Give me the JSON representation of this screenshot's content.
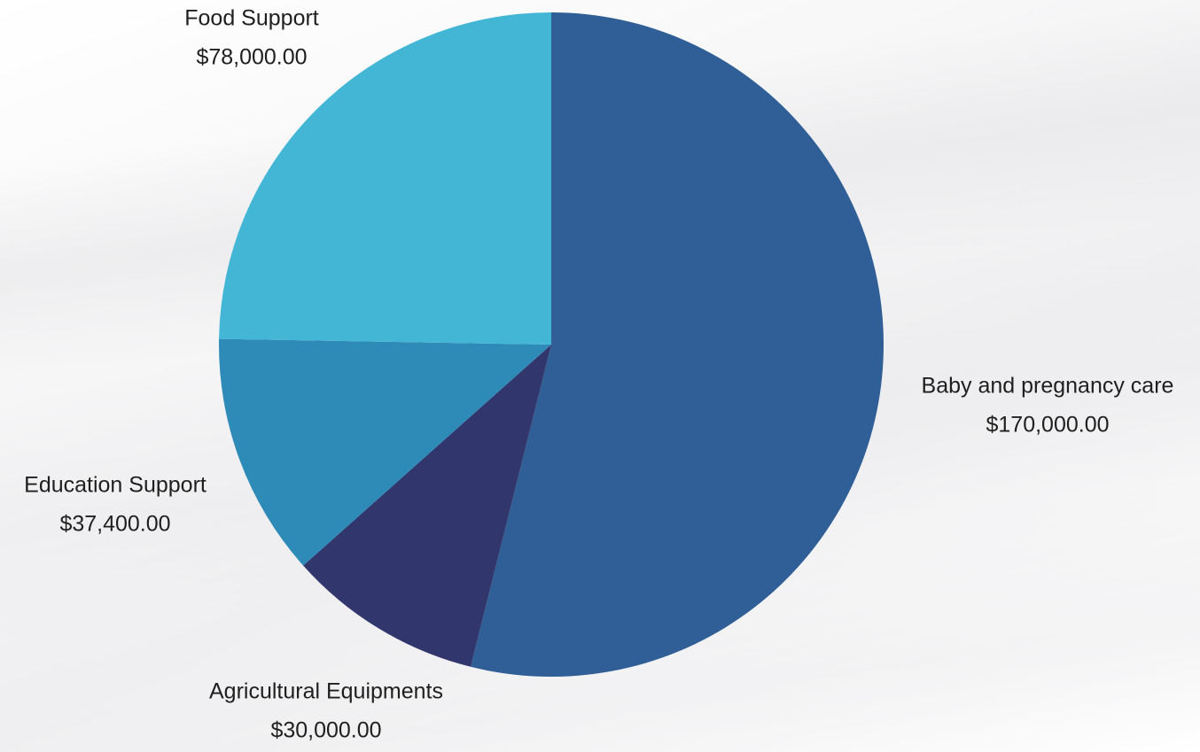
{
  "chart_data": {
    "type": "pie",
    "title": "",
    "start_angle_deg": 0,
    "direction": "clockwise",
    "legend": "none",
    "slices": [
      {
        "name": "Baby and pregnancy care",
        "value": 170000,
        "value_label": "$170,000.00",
        "color": "#2f5f96"
      },
      {
        "name": "Agricultural Equipments",
        "value": 30000,
        "value_label": "$30,000.00",
        "color": "#31366c"
      },
      {
        "name": "Education Support",
        "value": 37400,
        "value_label": "$37,400.00",
        "color": "#2e8bb8"
      },
      {
        "name": "Food Support",
        "value": 78000,
        "value_label": "$78,000.00",
        "color": "#43b6d6"
      }
    ]
  }
}
